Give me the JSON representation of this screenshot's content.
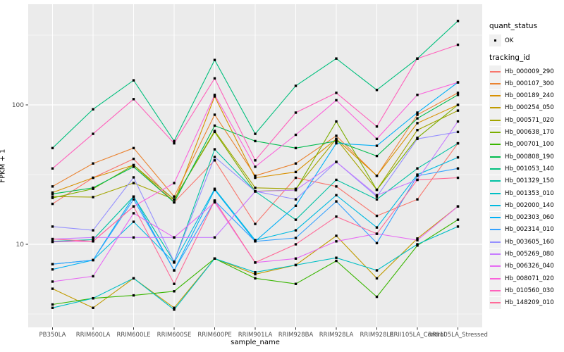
{
  "axes": {
    "y_title": "FPKM + 1",
    "x_title": "sample_name",
    "y_tick_labels": [
      "100",
      "10"
    ]
  },
  "legend": {
    "quant_status_title": "quant_status",
    "quant_status_items": [
      {
        "label": "OK",
        "marker": "black-square-point"
      }
    ],
    "tracking_id_title": "tracking_id"
  },
  "colors": {
    "panel_background": "#ebebeb",
    "grid": "#ffffff",
    "point": "#000000",
    "axis_text": "#4d4d4d",
    "tick_mark": "#333333",
    "legend_key_background": "#f0f0f0"
  },
  "chart_data": {
    "type": "line",
    "xlabel": "sample_name",
    "ylabel": "FPKM + 1",
    "scale": "log10",
    "ylim": [
      2.7,
      520
    ],
    "major_yticks": [
      10,
      100
    ],
    "minor_yticks": [
      3.162,
      31.62,
      316.2
    ],
    "grid": true,
    "legend_position": "right",
    "point_shape": "small-black-square",
    "categories": [
      "PB350LA",
      "RRIM600LA",
      "RRIM600LE",
      "RRIM600SE",
      "RRIM600PE",
      "RRIM901LA",
      "RRIM928BA",
      "RRIM928LA",
      "RRIM928LE",
      "RRII105LA_Control",
      "RRII105LA_Stressed"
    ],
    "series": [
      {
        "name": "Hb_000009_290",
        "color": "#F8766D",
        "values": [
          19.5,
          30,
          41,
          20,
          40,
          14,
          30,
          26,
          16,
          21,
          53
        ]
      },
      {
        "name": "Hb_000107_300",
        "color": "#EA8331",
        "values": [
          26,
          38,
          49,
          22,
          85,
          31,
          38,
          60,
          31,
          85,
          122
        ]
      },
      {
        "name": "Hb_000189_240",
        "color": "#D89000",
        "values": [
          23.5,
          30,
          37,
          20,
          115,
          30,
          33,
          57,
          31,
          74,
          100
        ]
      },
      {
        "name": "Hb_000254_050",
        "color": "#C09B00",
        "values": [
          4.8,
          3.5,
          5.7,
          3.5,
          7.9,
          6.1,
          7.1,
          11.5,
          5.7,
          11,
          18.7
        ]
      },
      {
        "name": "Hb_000571_020",
        "color": "#A3A500",
        "values": [
          22,
          21.8,
          27.5,
          21,
          65,
          25.4,
          25,
          57,
          24.6,
          66,
          91
        ]
      },
      {
        "name": "Hb_000638_170",
        "color": "#7CAE00",
        "values": [
          21.5,
          25,
          37,
          21,
          64,
          24,
          24.5,
          76,
          24.6,
          58,
          100
        ]
      },
      {
        "name": "Hb_000701_100",
        "color": "#39B600",
        "values": [
          3.7,
          4.1,
          4.3,
          4.6,
          7.9,
          5.7,
          5.2,
          7.6,
          4.2,
          9.8,
          15
        ]
      },
      {
        "name": "Hb_000808_190",
        "color": "#00BB4E",
        "values": [
          23,
          25.4,
          36,
          20,
          71,
          55,
          49,
          55,
          43,
          80,
          118
        ]
      },
      {
        "name": "Hb_001053_140",
        "color": "#00BF7D",
        "values": [
          49,
          93,
          150,
          55,
          210,
          62,
          137,
          215,
          128,
          215,
          400
        ]
      },
      {
        "name": "Hb_001329_150",
        "color": "#00C1A3",
        "values": [
          10.5,
          10.8,
          22,
          7.5,
          48,
          24,
          15,
          29,
          21,
          35,
          53
        ]
      },
      {
        "name": "Hb_001353_010",
        "color": "#00BFC4",
        "values": [
          3.5,
          4.1,
          5.7,
          3.4,
          7.9,
          6.3,
          7.1,
          8,
          6.5,
          10,
          13.4
        ]
      },
      {
        "name": "Hb_002000_140",
        "color": "#00BAE0",
        "values": [
          7.2,
          7.7,
          14.5,
          7.4,
          25,
          10.7,
          12.6,
          22.5,
          13.2,
          31.6,
          42
        ]
      },
      {
        "name": "Hb_002303_060",
        "color": "#00B0F6",
        "values": [
          6.6,
          7.7,
          22,
          6.5,
          24.6,
          10.5,
          18.9,
          53,
          50.9,
          88,
          145
        ]
      },
      {
        "name": "Hb_002314_010",
        "color": "#35A2FF",
        "values": [
          7.2,
          7.7,
          21,
          6.5,
          20.5,
          10.5,
          11.1,
          20.3,
          10.2,
          31,
          35
        ]
      },
      {
        "name": "Hb_003605_160",
        "color": "#9590FF",
        "values": [
          13.4,
          12.6,
          30.2,
          7.5,
          42.3,
          24,
          21,
          39,
          22,
          57,
          64
        ]
      },
      {
        "name": "Hb_005269_080",
        "color": "#C77CFF",
        "values": [
          10.9,
          11.2,
          11.2,
          11.2,
          11.2,
          23.9,
          24.5,
          39,
          22.5,
          29,
          76
        ]
      },
      {
        "name": "Hb_006326_040",
        "color": "#E76BF3",
        "values": [
          5.4,
          5.9,
          16.7,
          11.2,
          20,
          7.4,
          7.9,
          10.5,
          11.9,
          10.7,
          18.7
        ]
      },
      {
        "name": "Hb_008071_020",
        "color": "#FA62DB",
        "values": [
          10.4,
          10.5,
          18.7,
          27.5,
          118,
          36,
          61,
          108,
          57,
          118,
          145
        ]
      },
      {
        "name": "Hb_010560_030",
        "color": "#FF62BC",
        "values": [
          35,
          62,
          110,
          53,
          155,
          40,
          88,
          122,
          70,
          215,
          270
        ]
      },
      {
        "name": "Hb_148209_010",
        "color": "#FF6A98",
        "values": [
          10.9,
          10.5,
          18.7,
          5.2,
          20.6,
          7.4,
          10,
          15.8,
          11.9,
          29,
          30
        ]
      }
    ]
  }
}
